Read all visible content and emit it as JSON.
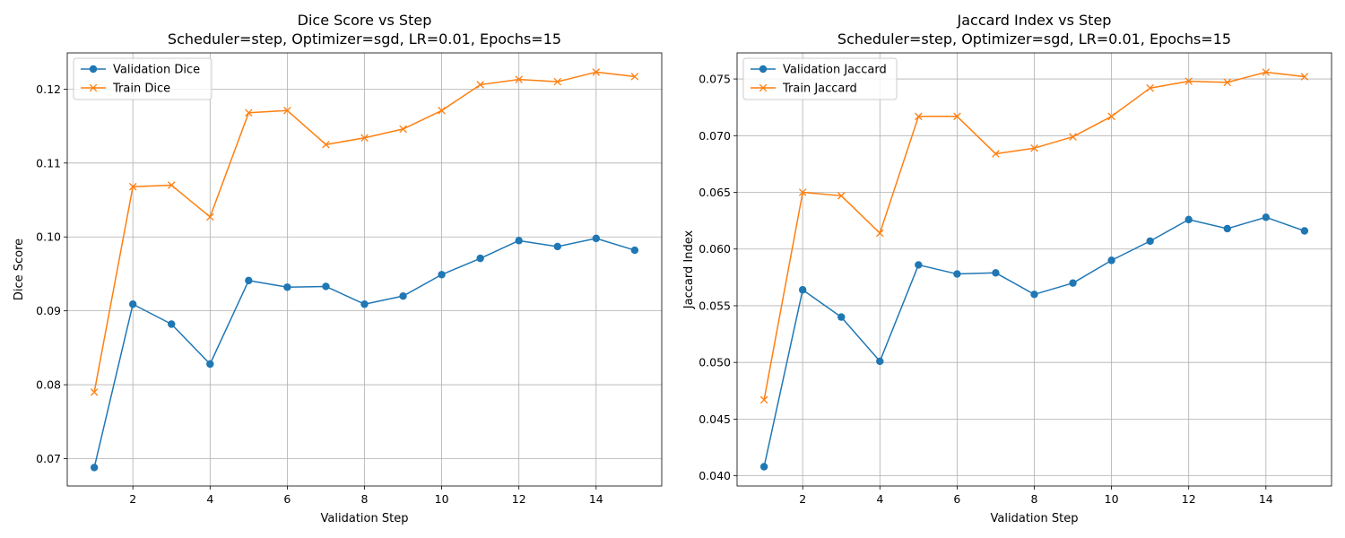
{
  "chart_data": [
    {
      "type": "line",
      "title": "Dice Score vs Step",
      "subtitle": "Scheduler=step, Optimizer=sgd, LR=0.01, Epochs=15",
      "xlabel": "Validation Step",
      "ylabel": "Dice Score",
      "xlim": [
        0.3,
        15.7
      ],
      "ylim": [
        0.0663,
        0.1249
      ],
      "xticks": [
        2,
        4,
        6,
        8,
        10,
        12,
        14
      ],
      "xtick_labels": [
        "2",
        "4",
        "6",
        "8",
        "10",
        "12",
        "14"
      ],
      "yticks": [
        0.07,
        0.08,
        0.09,
        0.1,
        0.11,
        0.12
      ],
      "ytick_labels": [
        "0.07",
        "0.08",
        "0.09",
        "0.10",
        "0.11",
        "0.12"
      ],
      "grid": true,
      "legend_position": "upper-left",
      "x": [
        1,
        2,
        3,
        4,
        5,
        6,
        7,
        8,
        9,
        10,
        11,
        12,
        13,
        14,
        15
      ],
      "series": [
        {
          "name": "Validation Dice",
          "color": "#1f77b4",
          "marker": "circle",
          "values": [
            0.0688,
            0.0909,
            0.0882,
            0.0828,
            0.0941,
            0.0932,
            0.0933,
            0.0909,
            0.092,
            0.0949,
            0.0971,
            0.0995,
            0.0987,
            0.0998,
            0.0982
          ]
        },
        {
          "name": "Train Dice",
          "color": "#ff7f0e",
          "marker": "x",
          "values": [
            0.079,
            0.1068,
            0.107,
            0.1027,
            0.1168,
            0.1171,
            0.1125,
            0.1134,
            0.1146,
            0.1171,
            0.1206,
            0.1213,
            0.121,
            0.1223,
            0.1217
          ]
        }
      ]
    },
    {
      "type": "line",
      "title": "Jaccard Index vs Step",
      "subtitle": "Scheduler=step, Optimizer=sgd, LR=0.01, Epochs=15",
      "xlabel": "Validation Step",
      "ylabel": "Jaccard Index",
      "xlim": [
        0.3,
        15.7
      ],
      "ylim": [
        0.0391,
        0.0773
      ],
      "xticks": [
        2,
        4,
        6,
        8,
        10,
        12,
        14
      ],
      "xtick_labels": [
        "2",
        "4",
        "6",
        "8",
        "10",
        "12",
        "14"
      ],
      "yticks": [
        0.04,
        0.045,
        0.05,
        0.055,
        0.06,
        0.065,
        0.07,
        0.075
      ],
      "ytick_labels": [
        "0.040",
        "0.045",
        "0.050",
        "0.055",
        "0.060",
        "0.065",
        "0.070",
        "0.075"
      ],
      "grid": true,
      "legend_position": "upper-left",
      "x": [
        1,
        2,
        3,
        4,
        5,
        6,
        7,
        8,
        9,
        10,
        11,
        12,
        13,
        14,
        15
      ],
      "series": [
        {
          "name": "Validation Jaccard",
          "color": "#1f77b4",
          "marker": "circle",
          "values": [
            0.0408,
            0.0564,
            0.054,
            0.0501,
            0.0586,
            0.0578,
            0.0579,
            0.056,
            0.057,
            0.059,
            0.0607,
            0.0626,
            0.0618,
            0.0628,
            0.0616
          ]
        },
        {
          "name": "Train Jaccard",
          "color": "#ff7f0e",
          "marker": "x",
          "values": [
            0.0467,
            0.065,
            0.0647,
            0.0614,
            0.0717,
            0.0717,
            0.0684,
            0.0689,
            0.0699,
            0.0717,
            0.0742,
            0.0748,
            0.0747,
            0.0756,
            0.0752
          ]
        }
      ]
    }
  ]
}
